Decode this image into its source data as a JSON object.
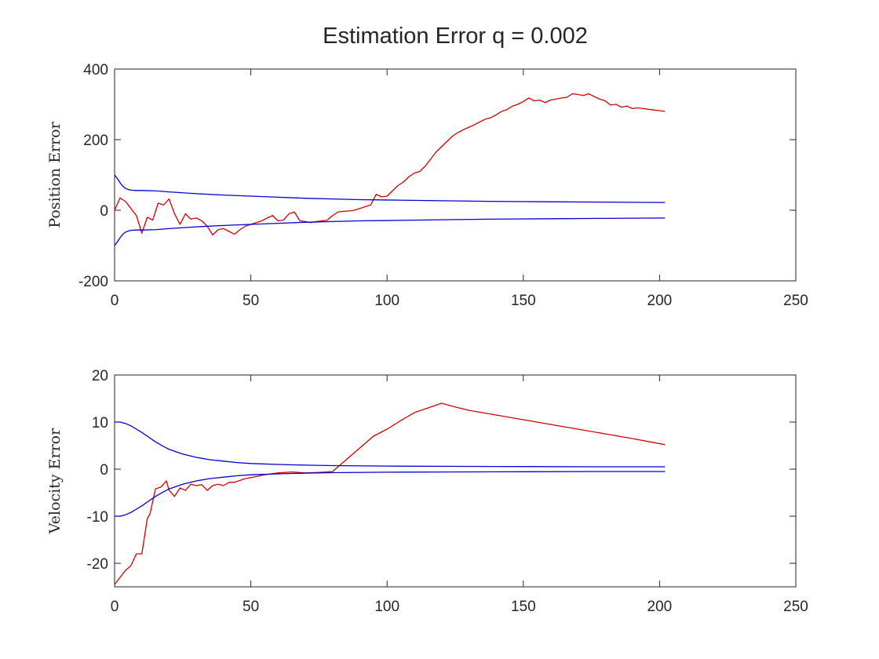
{
  "figure": {
    "title": "Estimation Error q = 0.002"
  },
  "chart_data": [
    {
      "type": "line",
      "ylabel": "Position Error",
      "xlim": [
        0,
        250
      ],
      "ylim": [
        -200,
        400
      ],
      "xticks": [
        0,
        50,
        100,
        150,
        200,
        250
      ],
      "yticks": [
        -200,
        0,
        200,
        400
      ],
      "series": [
        {
          "color": "#d40000",
          "x": [
            0,
            2,
            4,
            6,
            8,
            10,
            12,
            14,
            16,
            18,
            20,
            22,
            24,
            26,
            28,
            30,
            32,
            34,
            36,
            38,
            40,
            42,
            44,
            46,
            48,
            50,
            52,
            54,
            56,
            58,
            60,
            62,
            64,
            66,
            68,
            70,
            72,
            74,
            76,
            78,
            80,
            82,
            84,
            86,
            88,
            90,
            92,
            94,
            96,
            98,
            100,
            102,
            104,
            106,
            108,
            110,
            112,
            114,
            116,
            118,
            120,
            122,
            124,
            126,
            128,
            130,
            132,
            134,
            136,
            138,
            140,
            142,
            144,
            146,
            148,
            150,
            152,
            154,
            156,
            158,
            160,
            162,
            164,
            166,
            168,
            170,
            172,
            174,
            176,
            178,
            180,
            182,
            184,
            186,
            188,
            190,
            192,
            194,
            196,
            198,
            200,
            202
          ],
          "y": [
            0,
            35,
            25,
            5,
            -15,
            -65,
            -20,
            -28,
            20,
            15,
            32,
            -10,
            -40,
            -10,
            -25,
            -22,
            -30,
            -45,
            -70,
            -55,
            -52,
            -60,
            -68,
            -55,
            -45,
            -40,
            -35,
            -30,
            -22,
            -15,
            -30,
            -28,
            -10,
            -5,
            -30,
            -32,
            -35,
            -32,
            -30,
            -28,
            -15,
            -5,
            -3,
            -2,
            0,
            5,
            10,
            15,
            45,
            38,
            40,
            55,
            70,
            80,
            95,
            105,
            110,
            125,
            145,
            165,
            180,
            195,
            210,
            220,
            228,
            235,
            242,
            250,
            258,
            262,
            270,
            280,
            285,
            295,
            300,
            308,
            318,
            310,
            312,
            305,
            312,
            315,
            318,
            320,
            330,
            328,
            325,
            330,
            322,
            315,
            310,
            298,
            300,
            292,
            295,
            288,
            290,
            288,
            286,
            284,
            282,
            280
          ]
        },
        {
          "color": "#0000d4",
          "x": [
            0,
            1,
            2,
            3,
            4,
            5,
            6,
            8,
            10,
            15,
            20,
            30,
            40,
            50,
            60,
            70,
            80,
            90,
            100,
            120,
            140,
            160,
            180,
            202
          ],
          "y": [
            100,
            90,
            78,
            68,
            62,
            59,
            57,
            56,
            56,
            55,
            52,
            47,
            43,
            40,
            37,
            34,
            32,
            30,
            29,
            27,
            25,
            24,
            23,
            22
          ]
        },
        {
          "color": "#0000d4",
          "x": [
            0,
            1,
            2,
            3,
            4,
            5,
            6,
            8,
            10,
            15,
            20,
            30,
            40,
            50,
            60,
            70,
            80,
            90,
            100,
            120,
            140,
            160,
            180,
            202
          ],
          "y": [
            -100,
            -90,
            -78,
            -68,
            -62,
            -59,
            -57,
            -56,
            -56,
            -55,
            -52,
            -47,
            -43,
            -40,
            -37,
            -34,
            -32,
            -30,
            -29,
            -27,
            -25,
            -24,
            -23,
            -22
          ]
        }
      ]
    },
    {
      "type": "line",
      "ylabel": "Velocity Error",
      "xlim": [
        0,
        250
      ],
      "ylim": [
        -25,
        20
      ],
      "xticks": [
        0,
        50,
        100,
        150,
        200,
        250
      ],
      "yticks": [
        -20,
        -10,
        0,
        10,
        20
      ],
      "series": [
        {
          "color": "#d40000",
          "x": [
            0,
            2,
            4,
            6,
            8,
            10,
            12,
            13,
            15,
            16,
            17,
            19,
            20,
            22,
            24,
            26,
            28,
            30,
            32,
            34,
            36,
            38,
            40,
            42,
            44,
            46,
            48,
            50,
            55,
            60,
            65,
            70,
            75,
            80,
            85,
            90,
            95,
            100,
            105,
            110,
            115,
            120,
            125,
            130,
            140,
            150,
            160,
            170,
            180,
            190,
            202
          ],
          "y": [
            -24.5,
            -23,
            -21.5,
            -20.5,
            -18,
            -18,
            -10.5,
            -9.5,
            -4.2,
            -4,
            -3.8,
            -2.5,
            -4.5,
            -5.8,
            -4,
            -4.5,
            -3.2,
            -3.5,
            -3.3,
            -4.5,
            -3.5,
            -3.2,
            -3.5,
            -2.8,
            -2.8,
            -2.4,
            -2,
            -1.8,
            -1.2,
            -0.8,
            -0.6,
            -0.8,
            -0.7,
            -0.5,
            2,
            4.5,
            7,
            8.5,
            10.3,
            12,
            13,
            14,
            13.2,
            12.5,
            11.5,
            10.5,
            9.5,
            8.5,
            7.5,
            6.5,
            5.2
          ]
        },
        {
          "color": "#0000d4",
          "x": [
            0,
            2,
            4,
            6,
            8,
            10,
            12,
            15,
            18,
            20,
            25,
            30,
            35,
            40,
            45,
            50,
            60,
            70,
            80,
            100,
            120,
            150,
            180,
            202
          ],
          "y": [
            10,
            10,
            9.7,
            9.2,
            8.5,
            7.8,
            7,
            5.8,
            4.8,
            4.2,
            3.2,
            2.5,
            2.0,
            1.7,
            1.4,
            1.2,
            1.0,
            0.85,
            0.75,
            0.65,
            0.6,
            0.55,
            0.5,
            0.5
          ]
        },
        {
          "color": "#0000d4",
          "x": [
            0,
            2,
            4,
            6,
            8,
            10,
            12,
            15,
            18,
            20,
            25,
            30,
            35,
            40,
            45,
            50,
            60,
            70,
            80,
            100,
            120,
            150,
            180,
            202
          ],
          "y": [
            -10,
            -10,
            -9.7,
            -9.2,
            -8.5,
            -7.8,
            -7,
            -5.8,
            -4.8,
            -4.2,
            -3.2,
            -2.5,
            -2.0,
            -1.7,
            -1.4,
            -1.2,
            -1.0,
            -0.85,
            -0.75,
            -0.65,
            -0.6,
            -0.55,
            -0.5,
            -0.5
          ]
        }
      ]
    }
  ]
}
